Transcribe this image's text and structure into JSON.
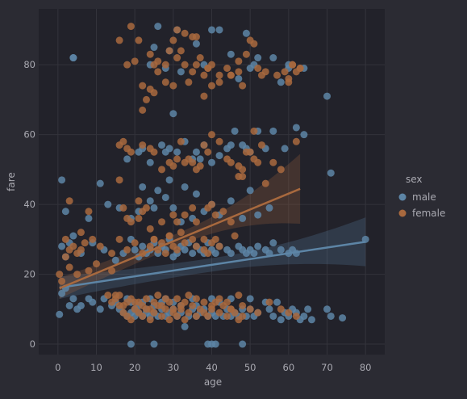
{
  "chart_data": {
    "type": "scatter",
    "title": "",
    "xlabel": "age",
    "ylabel": "fare",
    "xlim": [
      -5,
      85
    ],
    "ylim": [
      -3,
      96
    ],
    "xticks": [
      0,
      10,
      20,
      30,
      40,
      50,
      60,
      70,
      80
    ],
    "yticks": [
      0,
      20,
      40,
      60,
      80
    ],
    "grid": true,
    "legend": {
      "title": "sex",
      "position": "right"
    },
    "colors": {
      "background": "#2b2b33",
      "plot_area": "#22222a",
      "grid": "#33333b",
      "text": "#a9a9b1"
    },
    "series": [
      {
        "name": "male",
        "color": "#5d85a6",
        "regression": {
          "x_range": [
            0.4,
            80
          ],
          "slope": 0.165,
          "intercept": 16.1,
          "ci_start": 3.2,
          "ci_end": 7.0
        },
        "x": [
          0.4,
          1,
          2,
          3,
          4,
          5,
          6,
          8,
          9,
          11,
          12,
          14,
          15,
          16,
          17,
          18,
          18,
          19,
          19,
          20,
          20,
          21,
          21,
          22,
          22,
          23,
          23,
          24,
          24,
          25,
          25,
          26,
          27,
          27,
          28,
          28,
          29,
          30,
          30,
          31,
          32,
          32,
          33,
          34,
          35,
          35,
          36,
          36,
          37,
          38,
          39,
          40,
          40,
          41,
          42,
          43,
          44,
          45,
          45,
          46,
          47,
          48,
          49,
          50,
          50,
          51,
          52,
          54,
          55,
          56,
          57,
          58,
          59,
          60,
          61,
          62,
          63,
          64,
          65,
          66,
          70,
          71,
          74,
          80,
          1,
          2,
          3,
          4,
          6,
          9,
          12,
          15,
          17,
          19,
          20,
          21,
          22,
          23,
          24,
          25,
          26,
          27,
          28,
          29,
          30,
          31,
          32,
          33,
          34,
          35,
          36,
          37,
          38,
          39,
          40,
          41,
          42,
          44,
          45,
          47,
          48,
          49,
          50,
          51,
          52,
          54,
          55,
          56,
          58,
          60,
          61,
          62,
          2,
          8,
          11,
          13,
          16,
          19,
          21,
          22,
          24,
          25,
          26,
          28,
          29,
          30,
          32,
          33,
          35,
          36,
          38,
          40,
          42,
          45,
          48,
          50,
          52,
          55,
          1,
          4,
          18,
          21,
          22,
          24,
          27,
          28,
          29,
          30,
          31,
          33,
          35,
          36,
          37,
          38,
          40,
          42,
          44,
          45,
          46,
          48,
          49,
          50,
          52,
          54,
          56,
          59,
          60,
          62,
          64,
          70,
          19,
          25,
          39,
          40,
          41,
          48,
          4,
          24,
          25,
          26,
          28,
          29,
          31,
          32,
          36,
          38,
          40,
          42,
          45,
          47,
          49,
          50,
          51,
          52,
          56,
          58,
          60,
          64,
          71
        ],
        "y": [
          8.5,
          14.5,
          16,
          11,
          13,
          10,
          11,
          13,
          12,
          10,
          13,
          11,
          12,
          10,
          9,
          8,
          13,
          9,
          12,
          8,
          10,
          9,
          11,
          8,
          12,
          9,
          10,
          8,
          13,
          9,
          11,
          8,
          10,
          12,
          8,
          13,
          9,
          10,
          12,
          8,
          9,
          11,
          5,
          8,
          10,
          13,
          8,
          11,
          9,
          10,
          8,
          13,
          9,
          8,
          12,
          8,
          10,
          8,
          13,
          9,
          8,
          10,
          8,
          10,
          13,
          8,
          9,
          12,
          10,
          8,
          12,
          7,
          9,
          8,
          10,
          9,
          7,
          8,
          10,
          7,
          10,
          8,
          7.5,
          30,
          28,
          25,
          29,
          31,
          26,
          29,
          27,
          24,
          26,
          30,
          27,
          25,
          28,
          26,
          27,
          29,
          26,
          28,
          27,
          30,
          25,
          26,
          28,
          27,
          29,
          26,
          28,
          27,
          26,
          29,
          27,
          26,
          28,
          27,
          26,
          28,
          27,
          26,
          27,
          26,
          28,
          27,
          26,
          29,
          27,
          26,
          27,
          26,
          38,
          36,
          46,
          40,
          39,
          36,
          38,
          45,
          41,
          39,
          44,
          42,
          47,
          39,
          35,
          45,
          36,
          43,
          38,
          40,
          37,
          41,
          36,
          44,
          37,
          39,
          47,
          82,
          53,
          55,
          56,
          52,
          57,
          55,
          56,
          66,
          55,
          58,
          53,
          55,
          53,
          57,
          52,
          54,
          56,
          57,
          61,
          57,
          56,
          55,
          61,
          56,
          61,
          56,
          79,
          62,
          60,
          71,
          0,
          0,
          0,
          0,
          0,
          0,
          82,
          80,
          85,
          91,
          79,
          84,
          90,
          78,
          86,
          80,
          90,
          90,
          83,
          76,
          89,
          79,
          80,
          82,
          82,
          75,
          80,
          79,
          49
        ]
      },
      {
        "name": "female",
        "color": "#a8693e",
        "regression": {
          "x_range": [
            0.4,
            63
          ],
          "slope": 0.455,
          "intercept": 15.8,
          "ci_start": 3.0,
          "ci_end": 10.0
        },
        "x": [
          0.4,
          1,
          2,
          3,
          4,
          5,
          6,
          8,
          10,
          14,
          15,
          16,
          17,
          18,
          19,
          20,
          21,
          22,
          23,
          24,
          25,
          26,
          27,
          28,
          29,
          30,
          31,
          32,
          33,
          34,
          35,
          36,
          37,
          38,
          39,
          40,
          41,
          42,
          43,
          44,
          45,
          46,
          47,
          48,
          50,
          52,
          55,
          58,
          60,
          62,
          13,
          14,
          15,
          16,
          17,
          18,
          19,
          20,
          21,
          22,
          23,
          24,
          25,
          26,
          27,
          28,
          29,
          30,
          31,
          32,
          33,
          34,
          36,
          38,
          40,
          42,
          44,
          45,
          47,
          48,
          2,
          3,
          5,
          6,
          7,
          9,
          11,
          14,
          16,
          18,
          20,
          22,
          24,
          25,
          26,
          27,
          28,
          29,
          30,
          31,
          33,
          35,
          36,
          38,
          39,
          40,
          41,
          42,
          3,
          8,
          16,
          17,
          18,
          19,
          21,
          22,
          23,
          24,
          25,
          27,
          29,
          30,
          31,
          32,
          33,
          35,
          36,
          38,
          39,
          40,
          41,
          43,
          45,
          46,
          47,
          48,
          49,
          51,
          52,
          16,
          17,
          18,
          19,
          21,
          22,
          24,
          25,
          27,
          29,
          30,
          31,
          32,
          33,
          34,
          35,
          36,
          37,
          38,
          39,
          40,
          42,
          44,
          45,
          47,
          48,
          50,
          51,
          53,
          54,
          56,
          58,
          60,
          61,
          62,
          63,
          19,
          16,
          21,
          22,
          23,
          24,
          25,
          26,
          28,
          29,
          30,
          31,
          32,
          33,
          34,
          35,
          36,
          37,
          38,
          39,
          40,
          42,
          44,
          45,
          47,
          49,
          50,
          51,
          52,
          53,
          54,
          57,
          59,
          60,
          61,
          62,
          63,
          18,
          20,
          22,
          24,
          25,
          26,
          28,
          30,
          31,
          33,
          35,
          36,
          38,
          39,
          40,
          42,
          45,
          47,
          48
        ],
        "y": [
          20,
          18,
          25,
          22,
          28,
          20,
          27,
          21,
          23,
          21,
          14,
          11,
          9,
          8,
          7,
          12,
          9,
          8,
          10,
          7,
          9,
          11,
          8,
          10,
          7,
          9,
          8,
          10,
          7,
          9,
          11,
          8,
          10,
          9,
          8,
          10,
          12,
          9,
          11,
          8,
          10,
          9,
          7,
          8,
          10,
          9,
          12,
          10,
          9,
          8,
          14,
          12,
          13,
          14,
          11,
          12,
          13,
          10,
          12,
          11,
          13,
          10,
          12,
          14,
          11,
          13,
          12,
          10,
          13,
          11,
          12,
          14,
          13,
          12,
          11,
          13,
          12,
          10,
          14,
          11,
          30,
          27,
          26,
          32,
          29,
          30,
          28,
          26,
          30,
          27,
          29,
          26,
          28,
          30,
          27,
          29,
          26,
          31,
          28,
          27,
          29,
          30,
          28,
          27,
          26,
          29,
          30,
          28,
          41,
          38,
          47,
          39,
          36,
          35,
          36,
          38,
          39,
          33,
          30,
          35,
          31,
          37,
          35,
          32,
          37,
          39,
          35,
          30,
          39,
          40,
          37,
          38,
          35,
          31,
          48,
          50,
          55,
          61,
          52,
          57,
          58,
          56,
          55,
          41,
          57,
          56,
          55,
          50,
          52,
          51,
          53,
          58,
          52,
          53,
          52,
          50,
          51,
          57,
          55,
          60,
          58,
          53,
          52,
          51,
          48,
          55,
          53,
          57,
          46,
          52,
          50,
          75,
          80,
          58,
          79,
          91,
          87,
          87,
          74,
          70,
          73,
          80,
          78,
          75,
          84,
          87,
          90,
          84,
          89,
          75,
          88,
          88,
          82,
          71,
          79,
          80,
          77,
          79,
          77,
          81,
          83,
          87,
          86,
          79,
          77,
          78,
          77,
          78,
          76,
          80,
          78,
          79,
          80,
          81,
          67,
          83,
          72,
          81,
          80,
          74,
          82,
          80,
          78,
          80,
          77,
          79,
          74,
          75,
          77,
          78,
          74
        ]
      }
    ]
  }
}
